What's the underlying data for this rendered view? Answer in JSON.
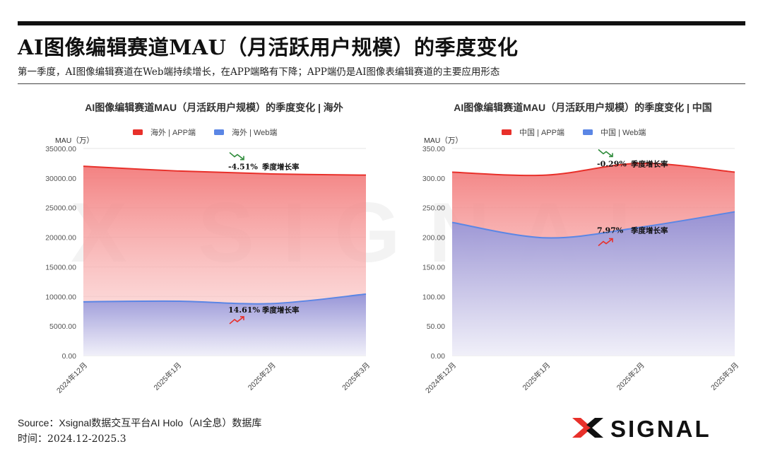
{
  "header": {
    "title": "AI图像编辑赛道MAU（月活跃用户规模）的季度变化",
    "subtitle": "第一季度，AI图像编辑赛道在Web端持续增长，在APP端略有下降；APP端仍是AI图像表编辑赛道的主要应用形态"
  },
  "footer": {
    "source": "Source：Xsignal数据交互平台AI Holo（AI全息）数据库",
    "time": "时间：2024.12-2025.3"
  },
  "logo": {
    "text": "SIGNAL",
    "mark": "X"
  },
  "colors": {
    "app": "#e8302a",
    "web": "#5b86e5",
    "up": "#e8302a",
    "down": "#2e8b3a"
  },
  "chart_data": [
    {
      "type": "area",
      "title": "AI图像编辑赛道MAU（月活跃用户规模）的季度变化 | 海外",
      "ylabel": "MAU（万）",
      "x": [
        "2024年12月",
        "2025年1月",
        "2025年2月",
        "2025年3月"
      ],
      "ylim": [
        0,
        35000
      ],
      "yticks": [
        "0.00",
        "5000.00",
        "10000.00",
        "15000.00",
        "20000.00",
        "25000.00",
        "30000.00",
        "35000.00"
      ],
      "series": [
        {
          "name": "海外 | APP端",
          "key": "app",
          "values": [
            32000,
            31200,
            30700,
            30500
          ]
        },
        {
          "name": "海外 | Web端",
          "key": "web",
          "values": [
            9100,
            9200,
            8800,
            10400
          ]
        }
      ],
      "annotations": [
        {
          "value": "-4.51%",
          "label": "季度增长率",
          "series": "app",
          "trend": "down"
        },
        {
          "value": "14.61%",
          "label": "季度增长率",
          "series": "web",
          "trend": "up"
        }
      ],
      "legend_position": "top",
      "grid": true
    },
    {
      "type": "area",
      "title": "AI图像编辑赛道MAU（月活跃用户规模）的季度变化 | 中国",
      "ylabel": "MAU（万）",
      "x": [
        "2024年12月",
        "2025年1月",
        "2025年2月",
        "2025年3月"
      ],
      "ylim": [
        0,
        350
      ],
      "yticks": [
        "0.00",
        "50.00",
        "100.00",
        "150.00",
        "200.00",
        "250.00",
        "300.00",
        "350.00"
      ],
      "series": [
        {
          "name": "中国 | APP端",
          "key": "app",
          "values": [
            310,
            305,
            325,
            310
          ]
        },
        {
          "name": "中国 | Web端",
          "key": "web",
          "values": [
            225,
            199,
            217,
            243
          ]
        }
      ],
      "annotations": [
        {
          "value": "-0.29%",
          "label": "季度增长率",
          "series": "app",
          "trend": "down"
        },
        {
          "value": "7.97%",
          "label": "季度增长率",
          "series": "web",
          "trend": "up"
        }
      ],
      "legend_position": "top",
      "grid": true
    }
  ]
}
